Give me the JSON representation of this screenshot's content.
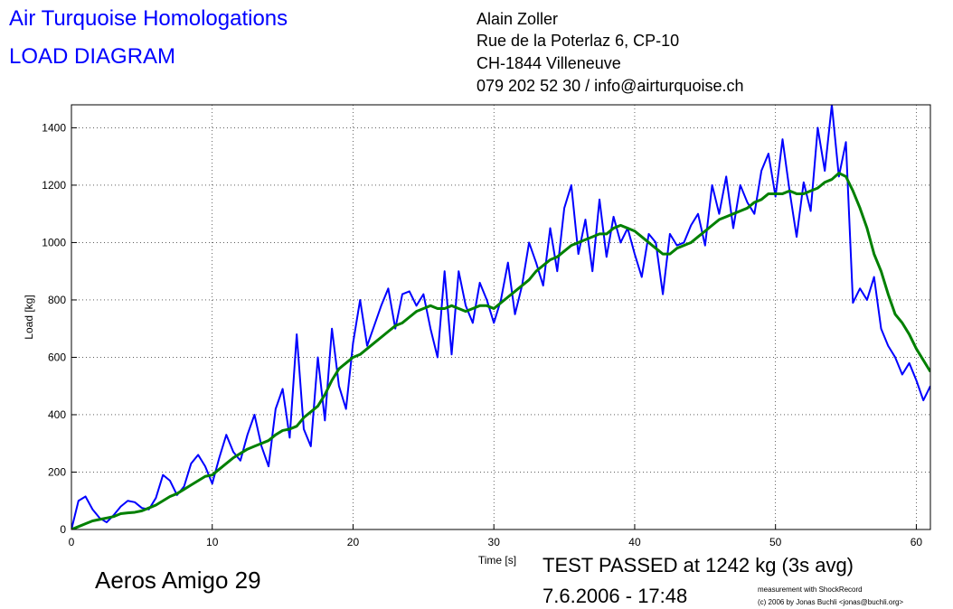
{
  "chart_data": {
    "type": "line",
    "title": "Air Turquoise Homologations",
    "subtitle": "LOAD DIAGRAM",
    "header_lines": [
      "Alain Zoller",
      "Rue de la Poterlaz 6, CP-10",
      "CH-1844 Villeneuve",
      "079 202 52 30 / info@airturquoise.ch"
    ],
    "x_label": "Time [s]",
    "y_label": "Load [kg]",
    "glider": "Aeros Amigo 29",
    "result": "TEST PASSED at 1242 kg (3s avg)",
    "date": "7.6.2006 - 17:48",
    "credits": [
      "measurement with ShockRecord",
      "(c) 2006 by Jonas Buchli <jonas@buchli.org>"
    ],
    "xlim": [
      0,
      61
    ],
    "xticks": [
      0,
      10,
      20,
      30,
      40,
      50,
      60
    ],
    "ylim": [
      0,
      1480
    ],
    "yticks": [
      0,
      200,
      400,
      600,
      800,
      1000,
      1200,
      1400
    ],
    "grid": true,
    "x": [
      0,
      0.5,
      1,
      1.5,
      2,
      2.5,
      3,
      3.5,
      4,
      4.5,
      5,
      5.5,
      6,
      6.5,
      7,
      7.5,
      8,
      8.5,
      9,
      9.5,
      10,
      10.5,
      11,
      11.5,
      12,
      12.5,
      13,
      13.5,
      14,
      14.5,
      15,
      15.5,
      16,
      16.5,
      17,
      17.5,
      18,
      18.5,
      19,
      19.5,
      20,
      20.5,
      21,
      21.5,
      22,
      22.5,
      23,
      23.5,
      24,
      24.5,
      25,
      25.5,
      26,
      26.5,
      27,
      27.5,
      28,
      28.5,
      29,
      29.5,
      30,
      30.5,
      31,
      31.5,
      32,
      32.5,
      33,
      33.5,
      34,
      34.5,
      35,
      35.5,
      36,
      36.5,
      37,
      37.5,
      38,
      38.5,
      39,
      39.5,
      40,
      40.5,
      41,
      41.5,
      42,
      42.5,
      43,
      43.5,
      44,
      44.5,
      45,
      45.5,
      46,
      46.5,
      47,
      47.5,
      48,
      48.5,
      49,
      49.5,
      50,
      50.5,
      51,
      51.5,
      52,
      52.5,
      53,
      53.5,
      54,
      54.5,
      55,
      55.5,
      56,
      56.5,
      57,
      57.5,
      58,
      58.5,
      59,
      59.5,
      60,
      60.5,
      61
    ],
    "series": [
      {
        "color": "#0000ff",
        "width": 2,
        "values": [
          0,
          100,
          115,
          70,
          40,
          25,
          50,
          80,
          100,
          95,
          75,
          70,
          110,
          190,
          170,
          120,
          150,
          230,
          260,
          220,
          160,
          250,
          330,
          270,
          240,
          330,
          400,
          290,
          220,
          420,
          490,
          320,
          680,
          350,
          290,
          600,
          380,
          700,
          500,
          420,
          650,
          800,
          640,
          710,
          780,
          840,
          700,
          820,
          830,
          780,
          820,
          700,
          600,
          900,
          610,
          900,
          780,
          720,
          860,
          800,
          720,
          800,
          930,
          750,
          850,
          1000,
          930,
          850,
          1050,
          900,
          1120,
          1200,
          960,
          1080,
          900,
          1150,
          950,
          1090,
          1000,
          1050,
          960,
          880,
          1030,
          1000,
          820,
          1030,
          990,
          1000,
          1060,
          1100,
          990,
          1200,
          1100,
          1230,
          1050,
          1200,
          1140,
          1100,
          1250,
          1310,
          1160,
          1360,
          1180,
          1020,
          1210,
          1110,
          1400,
          1250,
          1480,
          1230,
          1350,
          790,
          840,
          800,
          880,
          700,
          640,
          600,
          540,
          580,
          520,
          450,
          500
        ]
      },
      {
        "color": "#008000",
        "width": 3,
        "values": [
          0,
          10,
          20,
          30,
          35,
          40,
          45,
          55,
          58,
          60,
          65,
          75,
          85,
          100,
          115,
          125,
          140,
          155,
          170,
          185,
          190,
          210,
          230,
          250,
          265,
          280,
          290,
          300,
          310,
          330,
          345,
          350,
          360,
          390,
          410,
          430,
          470,
          520,
          560,
          580,
          600,
          610,
          630,
          650,
          670,
          690,
          710,
          720,
          740,
          760,
          770,
          780,
          770,
          770,
          780,
          770,
          760,
          770,
          780,
          780,
          770,
          790,
          810,
          830,
          850,
          870,
          900,
          920,
          940,
          950,
          970,
          990,
          1000,
          1010,
          1020,
          1030,
          1030,
          1050,
          1060,
          1050,
          1040,
          1020,
          1000,
          980,
          960,
          960,
          980,
          990,
          1000,
          1020,
          1040,
          1060,
          1080,
          1090,
          1100,
          1110,
          1120,
          1140,
          1150,
          1170,
          1170,
          1170,
          1180,
          1170,
          1170,
          1180,
          1190,
          1210,
          1220,
          1242,
          1230,
          1180,
          1120,
          1050,
          960,
          900,
          820,
          750,
          720,
          680,
          630,
          590,
          550
        ]
      }
    ]
  }
}
